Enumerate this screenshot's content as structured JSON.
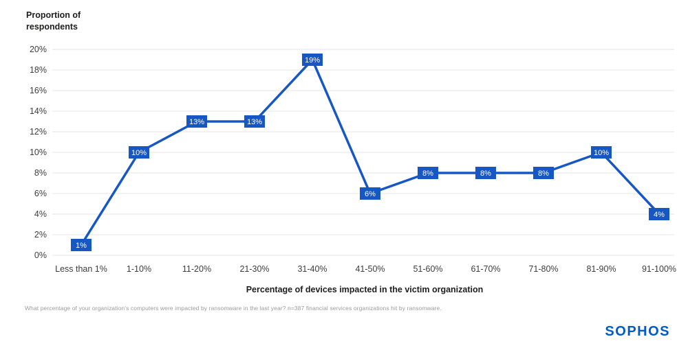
{
  "chart_data": {
    "type": "line",
    "title": "",
    "ylabel": "Proportion of\nrespondents",
    "xlabel": "Percentage of devices impacted in the victim organization",
    "categories": [
      "Less than 1%",
      "1-10%",
      "11-20%",
      "21-30%",
      "31-40%",
      "41-50%",
      "51-60%",
      "61-70%",
      "71-80%",
      "81-90%",
      "91-100%"
    ],
    "values": [
      1,
      10,
      13,
      13,
      19,
      6,
      8,
      8,
      8,
      10,
      4
    ],
    "point_labels": [
      "1%",
      "10%",
      "13%",
      "13%",
      "19%",
      "6%",
      "8%",
      "8%",
      "8%",
      "10%",
      "4%"
    ],
    "ylim": [
      0,
      20
    ],
    "ytick_step": 2,
    "ytick_suffix": "%",
    "grid": true,
    "legend": "none",
    "line_color": "#1757c4",
    "marker_color": "#1757c4",
    "marker_text_color": "#ffffff",
    "grid_color": "#e4e4e4",
    "axis_text_color": "#3c3c3b"
  },
  "footnote": "What percentage of your organization's computers were impacted by ransomware in the last year? n=387 financial services organizations hit by ransomware.",
  "brand": {
    "logo_text": "SOPHOS",
    "color": "#005bc8"
  }
}
